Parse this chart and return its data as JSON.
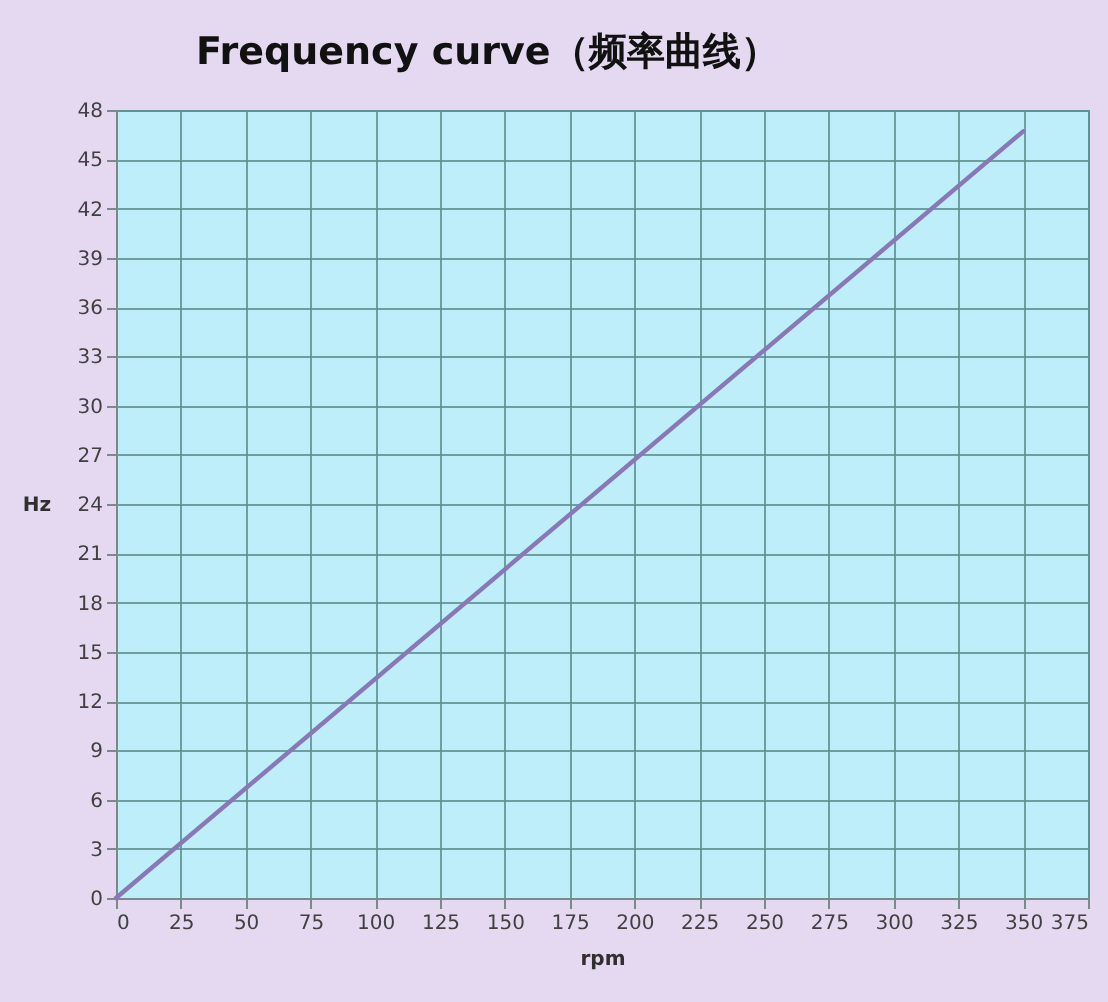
{
  "chart_data": {
    "type": "line",
    "title": "Frequency curve（频率曲线）",
    "xlabel": "rpm",
    "ylabel": "Hz",
    "x": [
      0,
      350
    ],
    "series": [
      {
        "color": "#8878b8",
        "values": [
          0,
          46.7
        ]
      }
    ],
    "xlim": [
      0,
      375
    ],
    "xticks": [
      0,
      25,
      50,
      75,
      100,
      125,
      150,
      175,
      200,
      225,
      250,
      275,
      300,
      325,
      350,
      375
    ],
    "ylim": [
      0,
      48
    ],
    "yticks": [
      0,
      3,
      6,
      9,
      12,
      15,
      18,
      21,
      24,
      27,
      30,
      33,
      36,
      39,
      42,
      45,
      48
    ],
    "grid": true,
    "marker": "none",
    "line_style": "solid"
  }
}
